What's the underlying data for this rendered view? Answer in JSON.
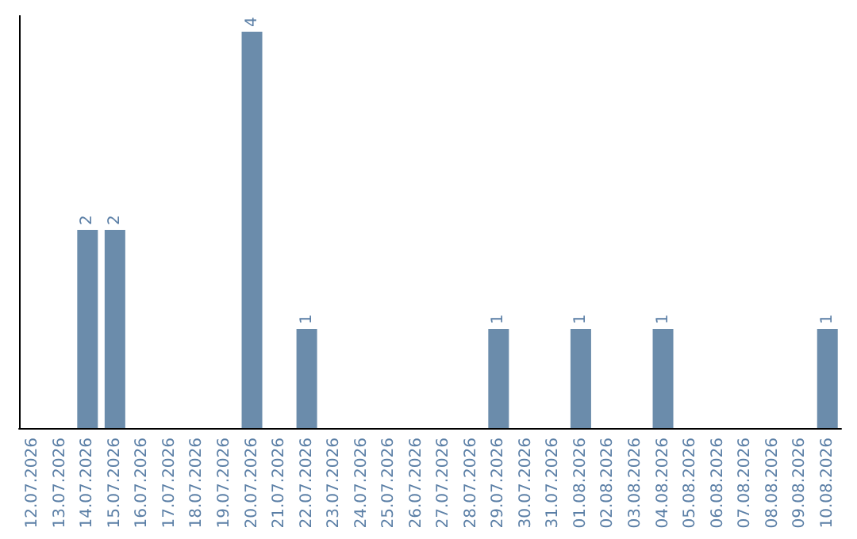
{
  "chart_data": {
    "type": "bar",
    "categories": [
      "12.07.2026",
      "13.07.2026",
      "14.07.2026",
      "15.07.2026",
      "16.07.2026",
      "17.07.2026",
      "18.07.2026",
      "19.07.2026",
      "20.07.2026",
      "21.07.2026",
      "22.07.2026",
      "23.07.2026",
      "24.07.2026",
      "25.07.2026",
      "26.07.2026",
      "27.07.2026",
      "28.07.2026",
      "29.07.2026",
      "30.07.2026",
      "31.07.2026",
      "01.08.2026",
      "02.08.2026",
      "03.08.2026",
      "04.08.2026",
      "05.08.2026",
      "06.08.2026",
      "07.08.2026",
      "08.08.2026",
      "09.08.2026",
      "10.08.2026"
    ],
    "values": [
      0,
      0,
      2,
      2,
      0,
      0,
      0,
      0,
      4,
      0,
      1,
      0,
      0,
      0,
      0,
      0,
      0,
      1,
      0,
      0,
      1,
      0,
      0,
      1,
      0,
      0,
      0,
      0,
      0,
      1
    ],
    "value_labels": [
      null,
      null,
      "2",
      "2",
      null,
      null,
      null,
      null,
      "4",
      null,
      "1",
      null,
      null,
      null,
      null,
      null,
      null,
      "1",
      null,
      null,
      "1",
      null,
      null,
      "1",
      null,
      null,
      null,
      null,
      null,
      "1"
    ],
    "color": "#6b8cab",
    "tick_labels": "x"
  }
}
